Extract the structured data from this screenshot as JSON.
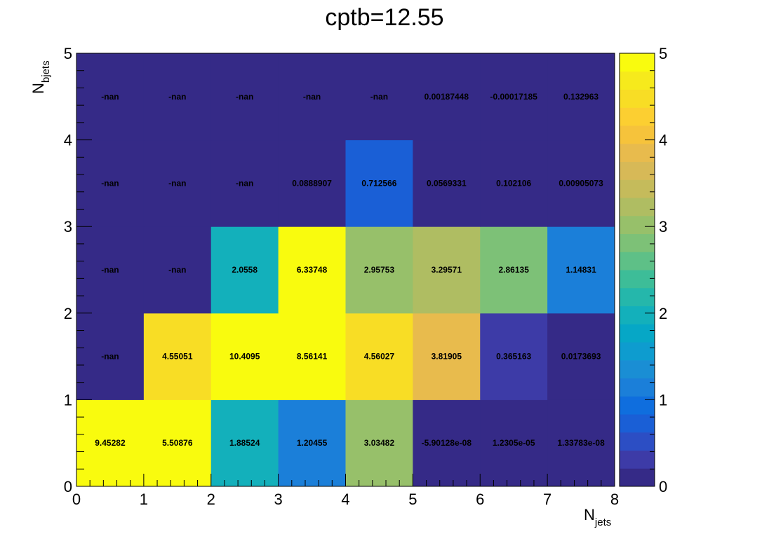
{
  "chart_data": {
    "type": "heatmap",
    "title": "cptb=12.55",
    "xlabel": {
      "main": "N",
      "sub": "jets"
    },
    "ylabel": {
      "main": "N",
      "sub": "bjets"
    },
    "xlim": [
      0,
      8
    ],
    "ylim": [
      0,
      5
    ],
    "x_ticks": [
      "0",
      "1",
      "2",
      "3",
      "4",
      "5",
      "6",
      "7",
      "8"
    ],
    "y_ticks": [
      "0",
      "1",
      "2",
      "3",
      "4",
      "5"
    ],
    "z_range": [
      0,
      5
    ],
    "z_ticks": [
      "0",
      "1",
      "2",
      "3",
      "4",
      "5"
    ],
    "palette": "kBird",
    "palette_colors": [
      "#352a87",
      "#3d3ba7",
      "#2c4ec4",
      "#1a5fd6",
      "#0f6ede",
      "#1b7fd9",
      "#1a8ed4",
      "#0e9ccf",
      "#06a7c6",
      "#13b0bb",
      "#25b7ab",
      "#3dbd98",
      "#5ec087",
      "#7dc177",
      "#97c06a",
      "#afbd62",
      "#c5bb5b",
      "#d7b957",
      "#e8bb4d",
      "#f6c33b",
      "#fccf31",
      "#f8dd25",
      "#f6ea1c",
      "#f9fb0e"
    ],
    "cells": [
      {
        "row": 0,
        "labels": [
          "9.45282",
          "5.50876",
          "1.88524",
          "1.20455",
          "3.03482",
          "-5.90128e-08",
          "1.2305e-05",
          "1.33783e-08"
        ],
        "values": [
          9.45282,
          5.50876,
          1.88524,
          1.20455,
          3.03482,
          -5.90128e-08,
          1.2305e-05,
          1.33783e-08
        ]
      },
      {
        "row": 1,
        "labels": [
          "-nan",
          "4.55051",
          "10.4095",
          "8.56141",
          "4.56027",
          "3.81905",
          "0.365163",
          "0.0173693"
        ],
        "values": [
          null,
          4.55051,
          10.4095,
          8.56141,
          4.56027,
          3.81905,
          0.365163,
          0.0173693
        ]
      },
      {
        "row": 2,
        "labels": [
          "-nan",
          "-nan",
          "2.0558",
          "6.33748",
          "2.95753",
          "3.29571",
          "2.86135",
          "1.14831"
        ],
        "values": [
          null,
          null,
          2.0558,
          6.33748,
          2.95753,
          3.29571,
          2.86135,
          1.14831
        ]
      },
      {
        "row": 3,
        "labels": [
          "-nan",
          "-nan",
          "-nan",
          "0.0888907",
          "0.712566",
          "0.0569331",
          "0.102106",
          "0.00905073"
        ],
        "values": [
          null,
          null,
          null,
          0.0888907,
          0.712566,
          0.0569331,
          0.102106,
          0.00905073
        ]
      },
      {
        "row": 4,
        "labels": [
          "-nan",
          "-nan",
          "-nan",
          "-nan",
          "-nan",
          "0.00187448",
          "-0.00017185",
          "0.132963"
        ],
        "values": [
          null,
          null,
          null,
          null,
          null,
          0.00187448,
          -0.00017185,
          0.132963
        ]
      }
    ]
  }
}
